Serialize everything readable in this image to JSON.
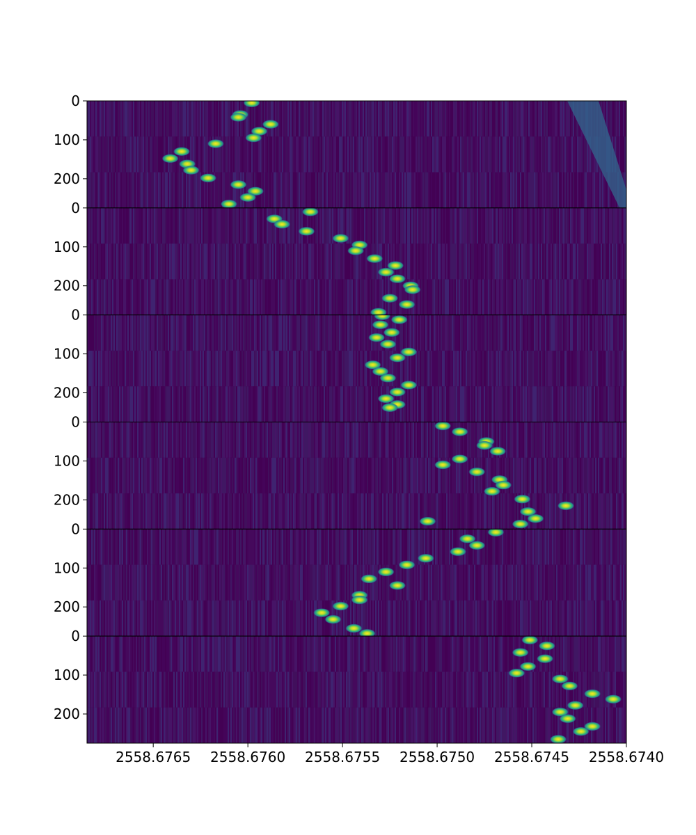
{
  "chart_data": {
    "type": "heatmap",
    "title": "",
    "xlabel": "",
    "ylabel": "",
    "colormap": "viridis",
    "background_color": "#440154",
    "x_axis": {
      "direction": "decreasing",
      "range": [
        2558.67685,
        2558.674
      ],
      "ticks": [
        2558.6765,
        2558.676,
        2558.6755,
        2558.675,
        2558.6745,
        2558.674
      ],
      "tick_labels": [
        "2558.6765",
        "2558.6760",
        "2558.6755",
        "2558.6750",
        "2558.6745",
        "2558.6740"
      ]
    },
    "panels": [
      {
        "y_range": [
          0,
          275
        ],
        "y_ticks": [
          0,
          100,
          200
        ],
        "y_tick_labels": [
          "0",
          "100",
          "200"
        ],
        "blobs": [
          {
            "x": 2558.67598,
            "y": 5
          },
          {
            "x": 2558.67604,
            "y": 35
          },
          {
            "x": 2558.67605,
            "y": 42
          },
          {
            "x": 2558.67588,
            "y": 60
          },
          {
            "x": 2558.67594,
            "y": 78
          },
          {
            "x": 2558.67597,
            "y": 95
          },
          {
            "x": 2558.67617,
            "y": 110
          },
          {
            "x": 2558.67635,
            "y": 130
          },
          {
            "x": 2558.67641,
            "y": 148
          },
          {
            "x": 2558.67632,
            "y": 162
          },
          {
            "x": 2558.6763,
            "y": 178
          },
          {
            "x": 2558.67621,
            "y": 198
          },
          {
            "x": 2558.67605,
            "y": 215
          },
          {
            "x": 2558.67596,
            "y": 232
          },
          {
            "x": 2558.676,
            "y": 248
          },
          {
            "x": 2558.6761,
            "y": 265
          }
        ],
        "diagonal_streak": true
      },
      {
        "y_range": [
          0,
          275
        ],
        "y_ticks": [
          0,
          100,
          200
        ],
        "y_tick_labels": [
          "0",
          "100",
          "200"
        ],
        "blobs": [
          {
            "x": 2558.67567,
            "y": 10
          },
          {
            "x": 2558.67586,
            "y": 28
          },
          {
            "x": 2558.67582,
            "y": 42
          },
          {
            "x": 2558.67569,
            "y": 60
          },
          {
            "x": 2558.67551,
            "y": 78
          },
          {
            "x": 2558.67541,
            "y": 95
          },
          {
            "x": 2558.67543,
            "y": 110
          },
          {
            "x": 2558.67533,
            "y": 130
          },
          {
            "x": 2558.67522,
            "y": 148
          },
          {
            "x": 2558.67527,
            "y": 165
          },
          {
            "x": 2558.67521,
            "y": 182
          },
          {
            "x": 2558.67514,
            "y": 200
          },
          {
            "x": 2558.67513,
            "y": 210
          },
          {
            "x": 2558.67525,
            "y": 232
          },
          {
            "x": 2558.67516,
            "y": 248
          },
          {
            "x": 2558.67531,
            "y": 268
          }
        ]
      },
      {
        "y_range": [
          0,
          275
        ],
        "y_ticks": [
          0,
          100,
          200
        ],
        "y_tick_labels": [
          "0",
          "100",
          "200"
        ],
        "blobs": [
          {
            "x": 2558.67529,
            "y": 2
          },
          {
            "x": 2558.6752,
            "y": 12
          },
          {
            "x": 2558.6753,
            "y": 25
          },
          {
            "x": 2558.67524,
            "y": 45
          },
          {
            "x": 2558.67532,
            "y": 58
          },
          {
            "x": 2558.67526,
            "y": 75
          },
          {
            "x": 2558.67515,
            "y": 95
          },
          {
            "x": 2558.67521,
            "y": 110
          },
          {
            "x": 2558.67534,
            "y": 128
          },
          {
            "x": 2558.6753,
            "y": 145
          },
          {
            "x": 2558.67526,
            "y": 162
          },
          {
            "x": 2558.67515,
            "y": 180
          },
          {
            "x": 2558.67521,
            "y": 198
          },
          {
            "x": 2558.67527,
            "y": 215
          },
          {
            "x": 2558.67521,
            "y": 230
          },
          {
            "x": 2558.67525,
            "y": 238
          }
        ]
      },
      {
        "y_range": [
          0,
          275
        ],
        "y_ticks": [
          0,
          100,
          200
        ],
        "y_tick_labels": [
          "0",
          "100",
          "200"
        ],
        "blobs": [
          {
            "x": 2558.67505,
            "y": 255
          },
          {
            "x": 2558.67497,
            "y": 10
          },
          {
            "x": 2558.67488,
            "y": 25
          },
          {
            "x": 2558.67474,
            "y": 50
          },
          {
            "x": 2558.67475,
            "y": 60
          },
          {
            "x": 2558.67468,
            "y": 75
          },
          {
            "x": 2558.67488,
            "y": 95
          },
          {
            "x": 2558.67497,
            "y": 110
          },
          {
            "x": 2558.67479,
            "y": 128
          },
          {
            "x": 2558.67467,
            "y": 148
          },
          {
            "x": 2558.67465,
            "y": 162
          },
          {
            "x": 2558.67471,
            "y": 178
          },
          {
            "x": 2558.67455,
            "y": 198
          },
          {
            "x": 2558.67432,
            "y": 215
          },
          {
            "x": 2558.67452,
            "y": 230
          },
          {
            "x": 2558.67448,
            "y": 248
          },
          {
            "x": 2558.67456,
            "y": 262
          }
        ]
      },
      {
        "y_range": [
          0,
          275
        ],
        "y_ticks": [
          0,
          100,
          200
        ],
        "y_tick_labels": [
          "0",
          "100",
          "200"
        ],
        "blobs": [
          {
            "x": 2558.67469,
            "y": 8
          },
          {
            "x": 2558.67484,
            "y": 25
          },
          {
            "x": 2558.67479,
            "y": 42
          },
          {
            "x": 2558.67489,
            "y": 58
          },
          {
            "x": 2558.67506,
            "y": 75
          },
          {
            "x": 2558.67516,
            "y": 92
          },
          {
            "x": 2558.67527,
            "y": 110
          },
          {
            "x": 2558.67536,
            "y": 128
          },
          {
            "x": 2558.67521,
            "y": 145
          },
          {
            "x": 2558.67541,
            "y": 170
          },
          {
            "x": 2558.67541,
            "y": 182
          },
          {
            "x": 2558.67551,
            "y": 198
          },
          {
            "x": 2558.67561,
            "y": 215
          },
          {
            "x": 2558.67555,
            "y": 232
          },
          {
            "x": 2558.67544,
            "y": 255
          },
          {
            "x": 2558.67537,
            "y": 268
          }
        ]
      },
      {
        "y_range": [
          0,
          275
        ],
        "y_ticks": [
          0,
          100,
          200
        ],
        "y_tick_labels": [
          "0",
          "100",
          "200"
        ],
        "blobs": [
          {
            "x": 2558.67451,
            "y": 10
          },
          {
            "x": 2558.67442,
            "y": 25
          },
          {
            "x": 2558.67456,
            "y": 42
          },
          {
            "x": 2558.67443,
            "y": 58
          },
          {
            "x": 2558.67452,
            "y": 78
          },
          {
            "x": 2558.67458,
            "y": 95
          },
          {
            "x": 2558.67435,
            "y": 110
          },
          {
            "x": 2558.6743,
            "y": 128
          },
          {
            "x": 2558.67418,
            "y": 148
          },
          {
            "x": 2558.67407,
            "y": 162
          },
          {
            "x": 2558.67427,
            "y": 178
          },
          {
            "x": 2558.67435,
            "y": 195
          },
          {
            "x": 2558.67431,
            "y": 212
          },
          {
            "x": 2558.67418,
            "y": 232
          },
          {
            "x": 2558.67424,
            "y": 245
          },
          {
            "x": 2558.67436,
            "y": 265
          }
        ]
      }
    ]
  }
}
